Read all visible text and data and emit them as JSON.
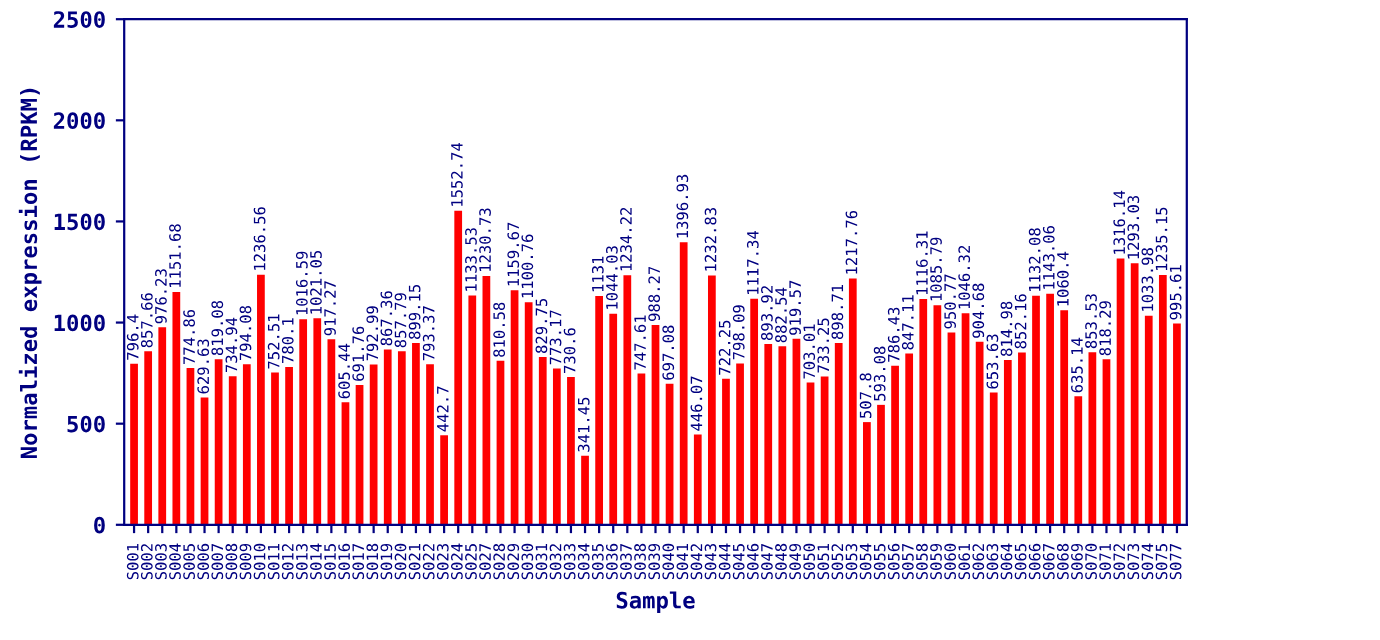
{
  "chart_data": {
    "type": "bar",
    "xlabel": "Sample",
    "ylabel": "Normalized expression (RPKM)",
    "categories": [
      "S001",
      "S002",
      "S003",
      "S004",
      "S005",
      "S006",
      "S007",
      "S008",
      "S009",
      "S010",
      "S011",
      "S012",
      "S013",
      "S014",
      "S015",
      "S016",
      "S017",
      "S018",
      "S019",
      "S020",
      "S021",
      "S022",
      "S023",
      "S024",
      "S025",
      "S027",
      "S028",
      "S029",
      "S030",
      "S031",
      "S032",
      "S033",
      "S034",
      "S035",
      "S036",
      "S037",
      "S038",
      "S039",
      "S040",
      "S041",
      "S042",
      "S043",
      "S044",
      "S045",
      "S046",
      "S047",
      "S048",
      "S049",
      "S050",
      "S051",
      "S052",
      "S053",
      "S054",
      "S055",
      "S056",
      "S057",
      "S058",
      "S059",
      "S060",
      "S061",
      "S062",
      "S063",
      "S064",
      "S065",
      "S066",
      "S067",
      "S068",
      "S069",
      "S070",
      "S071",
      "S072",
      "S073",
      "S074",
      "S075",
      "S077"
    ],
    "values": [
      796.4,
      857.66,
      976.23,
      1151.68,
      774.86,
      629.63,
      819.08,
      734.94,
      794.08,
      1236.56,
      752.51,
      780.1,
      1016.59,
      1021.05,
      917.27,
      605.44,
      691.76,
      792.99,
      867.36,
      857.79,
      899.15,
      793.37,
      442.7,
      1552.74,
      1133.53,
      1230.73,
      810.58,
      1159.67,
      1100.76,
      829.75,
      773.17,
      730.6,
      341.45,
      1131,
      1044.03,
      1234.22,
      747.61,
      988.27,
      697.08,
      1396.93,
      446.07,
      1232.83,
      722.25,
      798.09,
      1117.34,
      893.92,
      882.54,
      919.57,
      703.01,
      733.25,
      898.71,
      1217.76,
      507.8,
      593.08,
      786.43,
      847.11,
      1116.31,
      1085.79,
      950.77,
      1046.32,
      904.68,
      653.63,
      814.98,
      852.16,
      1132.08,
      1143.06,
      1060.4,
      635.14,
      853.53,
      818.29,
      1316.14,
      1293.03,
      1033.98,
      1235.15,
      995.61
    ],
    "color": "#ff0000",
    "ylim": [
      0,
      2500
    ],
    "yticks": [
      0,
      500,
      1000,
      1500,
      2000,
      2500
    ],
    "data_labels": true,
    "grid": false
  }
}
